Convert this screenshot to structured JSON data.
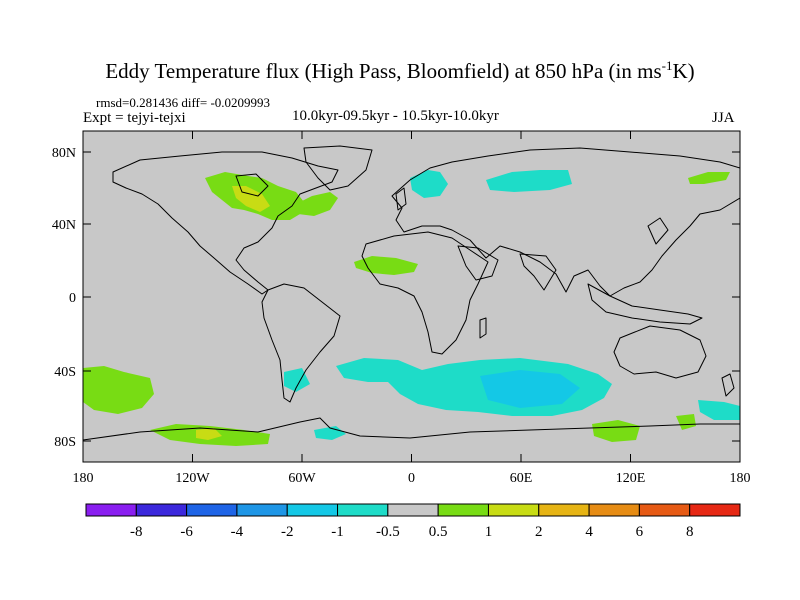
{
  "title": {
    "main": "Eddy Temperature flux (High Pass, Bloomfield) at 850 hPa (in ms",
    "superscript": "-1",
    "end": "K)"
  },
  "stats": {
    "rmsd_label": "rmsd=",
    "rmsd": "0.281436",
    "diff_label": "diff=",
    "diff": "-0.0209993"
  },
  "expt": "Expt = tejyi-tejxi",
  "period": "10.0kyr-09.5kyr - 10.5kyr-10.0kyr",
  "season": "JJA",
  "map": {
    "y_ticks": [
      "80N",
      "40N",
      "0",
      "40S",
      "80S"
    ],
    "x_ticks": [
      "180",
      "120W",
      "60W",
      "0",
      "60E",
      "120E",
      "180"
    ],
    "background_color": "#c8c8c8"
  },
  "colorbar": {
    "labels": [
      "-8",
      "-6",
      "-4",
      "-2",
      "-1",
      "-0.5",
      "0.5",
      "1",
      "2",
      "4",
      "6",
      "8"
    ],
    "colors": [
      "#8a1ef0",
      "#3c28dc",
      "#1e64e6",
      "#1e96e6",
      "#14c8e6",
      "#1edcc8",
      "#c8c8c8",
      "#78dc14",
      "#c8dc14",
      "#e6b414",
      "#e68c14",
      "#e65a14",
      "#e62814"
    ]
  },
  "anomalies": [
    {
      "region": "north-america-positive",
      "sign": "positive"
    },
    {
      "region": "north-atlantic-positive",
      "sign": "positive"
    },
    {
      "region": "scandinavia-negative",
      "sign": "negative"
    },
    {
      "region": "siberia-negative",
      "sign": "negative"
    },
    {
      "region": "sahara-positive",
      "sign": "positive"
    },
    {
      "region": "southern-ocean-negative",
      "sign": "negative"
    },
    {
      "region": "south-pacific-positive",
      "sign": "positive"
    },
    {
      "region": "antarctic-coast-positive",
      "sign": "positive"
    }
  ]
}
